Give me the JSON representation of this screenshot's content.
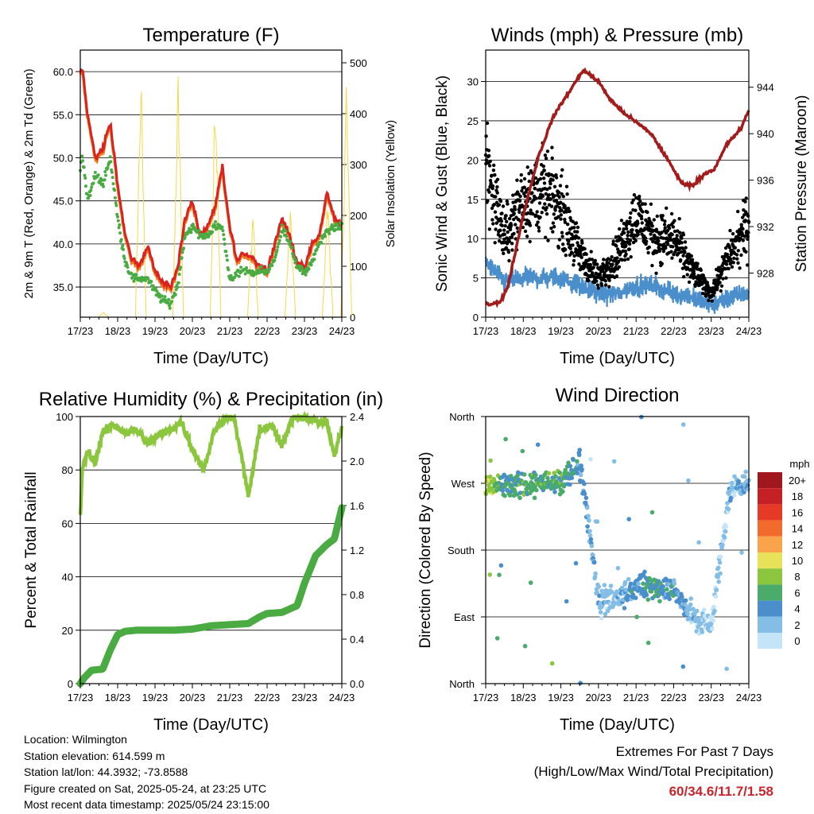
{
  "colors": {
    "temp_2m": "#d8231f",
    "temp_9m": "#f47a1f",
    "dewpoint": "#4aab43",
    "insolation": "#f7d84a",
    "wind": "#4a8fcc",
    "gust": "#000000",
    "pressure": "#a31c1c",
    "rh": "#8cc63f",
    "rain": "#4aab43",
    "extremes": "#c8252c"
  },
  "common_x": {
    "ticks": [
      "17/23",
      "18/23",
      "19/23",
      "20/23",
      "21/23",
      "22/23",
      "23/23",
      "24/23"
    ],
    "label": "Time (Day/UTC)"
  },
  "chart_data": [
    {
      "id": "temperature",
      "type": "line",
      "title": "Temperature (F)",
      "xlabel": "Time (Day/UTC)",
      "ylabel": "2m & 9m T (Red, Orange) & 2m Td (Green)",
      "y2label": "Solar Insolation (Yellow)",
      "ylim": [
        31.5,
        62.5
      ],
      "y2lim": [
        0,
        525
      ],
      "yticks": [
        "35.0",
        "40.0",
        "45.0",
        "50.0",
        "55.0",
        "60.0"
      ],
      "y2ticks": [
        "0",
        "100",
        "200",
        "300",
        "400",
        "500"
      ],
      "series": [
        {
          "name": "2m T",
          "x": [
            0,
            0.05,
            0.2,
            0.4,
            0.6,
            0.8,
            1.0,
            1.2,
            1.4,
            1.6,
            1.8,
            2.0,
            2.2,
            2.4,
            2.6,
            2.8,
            3.0,
            3.2,
            3.4,
            3.6,
            3.8,
            4.0,
            4.2,
            4.4,
            4.6,
            4.8,
            5.0,
            5.2,
            5.4,
            5.6,
            5.8,
            6.0,
            6.2,
            6.4,
            6.6,
            6.8,
            7.0
          ],
          "values": [
            60,
            60.5,
            55,
            50,
            51,
            54,
            47,
            41,
            38,
            37.5,
            40,
            37,
            35.5,
            35,
            37,
            43,
            45,
            41,
            42,
            44,
            49,
            42,
            38,
            39,
            38.5,
            37.5,
            37,
            40,
            43,
            41,
            38,
            37,
            40,
            41,
            46,
            43,
            42
          ]
        },
        {
          "name": "2m Td",
          "x": [
            0,
            0.05,
            0.2,
            0.4,
            0.6,
            0.8,
            1.0,
            1.2,
            1.4,
            1.6,
            1.8,
            2.0,
            2.2,
            2.4,
            2.6,
            2.8,
            3.0,
            3.2,
            3.4,
            3.6,
            3.8,
            4.0,
            4.2,
            4.4,
            4.6,
            4.8,
            5.0,
            5.2,
            5.4,
            5.6,
            5.8,
            6.0,
            6.2,
            6.4,
            6.6,
            6.8,
            7.0
          ],
          "values": [
            49,
            50.5,
            45,
            48,
            47,
            50,
            43,
            38,
            36,
            36,
            36,
            34.5,
            33.5,
            33,
            35,
            41,
            42,
            41,
            41,
            42,
            42,
            36,
            36.5,
            37,
            36.5,
            37,
            36.8,
            38,
            42,
            40,
            37.5,
            36.5,
            38,
            40,
            41.5,
            42,
            42
          ]
        },
        {
          "name": "Solar Insolation",
          "peaks_day": [
            0,
            1,
            2,
            3,
            4,
            5,
            6,
            6.5
          ],
          "peaks": [
            10,
            520,
            500,
            510,
            230,
            220,
            250,
            500
          ]
        }
      ]
    },
    {
      "id": "winds",
      "type": "scatter",
      "title": "Winds (mph) & Pressure (mb)",
      "xlabel": "Time (Day/UTC)",
      "ylabel": "Sonic Wind & Gust (Blue, Black)",
      "y2label": "Station Pressure (Maroon)",
      "ylim": [
        0,
        34
      ],
      "y2lim": [
        924.2,
        947.2
      ],
      "yticks": [
        "0",
        "5",
        "10",
        "15",
        "20",
        "25",
        "30"
      ],
      "y2ticks": [
        "928",
        "932",
        "936",
        "940",
        "944"
      ],
      "series": [
        {
          "name": "Station Pressure",
          "x": [
            0,
            0.1,
            0.4,
            0.6,
            1.0,
            1.4,
            1.8,
            2.2,
            2.6,
            3.0,
            3.3,
            3.6,
            4.0,
            4.4,
            4.8,
            5.2,
            5.5,
            5.8,
            6.1,
            6.4,
            6.8,
            7.0
          ],
          "values": [
            925.5,
            925.3,
            925.5,
            927,
            933,
            938,
            941.5,
            943.5,
            945.5,
            944.5,
            943,
            942,
            941,
            940,
            938,
            935.8,
            935.5,
            936.5,
            937,
            939,
            940.5,
            942
          ]
        },
        {
          "name": "Gust (daily center)",
          "x": [
            0,
            0.5,
            1.0,
            1.5,
            2.0,
            2.5,
            3.0,
            3.5,
            4.0,
            4.5,
            5.0,
            5.5,
            6.0,
            6.5,
            7.0
          ],
          "values": [
            20,
            10,
            15,
            16,
            14,
            8,
            5,
            8,
            13,
            10,
            10,
            6,
            3,
            8,
            12
          ]
        },
        {
          "name": "Sonic Wind (daily center)",
          "x": [
            0,
            0.5,
            1.0,
            1.5,
            2.0,
            2.5,
            3.0,
            3.5,
            4.0,
            4.5,
            5.0,
            5.5,
            6.0,
            6.5,
            7.0
          ],
          "values": [
            7,
            4.5,
            5,
            5,
            5,
            4,
            3,
            3,
            4,
            4,
            3,
            2.5,
            1.5,
            2.5,
            3
          ]
        }
      ]
    },
    {
      "id": "humidity",
      "type": "line",
      "title": "Relative Humidity (%) & Precipitation (in)",
      "xlabel": "Time (Day/UTC)",
      "ylabel": "Percent & Total Rainfall",
      "ylim": [
        0,
        100
      ],
      "y2lim": [
        0,
        2.4
      ],
      "yticks": [
        "0",
        "20",
        "40",
        "60",
        "80",
        "100"
      ],
      "y2ticks": [
        "0.0",
        "0.4",
        "0.8",
        "1.2",
        "1.6",
        "2.0",
        "2.4"
      ],
      "series": [
        {
          "name": "Relative Humidity",
          "x": [
            0,
            0.05,
            0.2,
            0.4,
            0.6,
            0.9,
            1.2,
            1.5,
            1.8,
            2.1,
            2.4,
            2.7,
            3.0,
            3.3,
            3.6,
            3.9,
            4.1,
            4.3,
            4.5,
            4.8,
            5.1,
            5.4,
            5.7,
            6.0,
            6.3,
            6.6,
            6.8,
            7.0
          ],
          "values": [
            63,
            80,
            87,
            83,
            94,
            97,
            94,
            95,
            90,
            93,
            95,
            98,
            88,
            80,
            95,
            100,
            100,
            86,
            70,
            95,
            97,
            89,
            100,
            100,
            98,
            98,
            85,
            96
          ]
        },
        {
          "name": "Total Rainfall",
          "x": [
            0,
            0.1,
            0.3,
            0.6,
            0.8,
            1.0,
            1.2,
            1.5,
            2.0,
            2.5,
            3.0,
            3.5,
            4.0,
            4.5,
            4.8,
            5.0,
            5.4,
            5.8,
            6.0,
            6.3,
            6.6,
            6.8,
            7.0
          ],
          "values": [
            0,
            0.05,
            0.12,
            0.13,
            0.3,
            0.44,
            0.47,
            0.48,
            0.48,
            0.48,
            0.49,
            0.52,
            0.53,
            0.54,
            0.6,
            0.63,
            0.64,
            0.7,
            0.9,
            1.15,
            1.25,
            1.3,
            1.58
          ]
        }
      ]
    },
    {
      "id": "direction",
      "type": "scatter",
      "title": "Wind Direction",
      "xlabel": "Time (Day/UTC)",
      "ylabel": "Direction (Colored By Speed)",
      "yticks": [
        "North",
        "East",
        "South",
        "West",
        "North"
      ],
      "ylim": [
        0,
        360
      ],
      "series": [
        {
          "name": "Direction (daily center, deg)",
          "x": [
            0,
            0.5,
            1.0,
            1.5,
            2.0,
            2.5,
            3.0,
            3.5,
            4.0,
            4.5,
            5.0,
            5.5,
            6.0,
            6.5,
            7.0
          ],
          "values": [
            270,
            270,
            270,
            270,
            270,
            300,
            110,
            115,
            130,
            130,
            130,
            90,
            80,
            260,
            270
          ]
        },
        {
          "name": "Speed (daily center, mph)",
          "x": [
            0,
            0.5,
            1.0,
            1.5,
            2.0,
            2.5,
            3.0,
            3.5,
            4.0,
            4.5,
            5.0,
            5.5,
            6.0,
            6.5,
            7.0
          ],
          "values": [
            9,
            5,
            6,
            6,
            6,
            4,
            2,
            2,
            4,
            5,
            4,
            2,
            1,
            2,
            3
          ]
        }
      ],
      "legend": {
        "title": "mph",
        "labels": [
          "20+",
          "18",
          "16",
          "14",
          "12",
          "10",
          "8",
          "6",
          "4",
          "2",
          "0"
        ],
        "colors": [
          "#a0181d",
          "#c62027",
          "#e63a27",
          "#f26b2c",
          "#f9a44a",
          "#e7e25a",
          "#8cc63f",
          "#4aab6a",
          "#4a8fcc",
          "#84bde6",
          "#c4e4f7"
        ]
      }
    }
  ],
  "info": {
    "location": "Location: Wilmington",
    "elevation": "Station elevation: 614.599 m",
    "latlon": "Station lat/lon: 44.3932; -73.8588",
    "created": "Figure created on Sat, 2025-05-24, at 23:25 UTC",
    "recent": "Most recent data timestamp: 2025/05/24 23:15:00"
  },
  "extremes": {
    "title1": "Extremes For Past 7 Days",
    "title2": "(High/Low/Max Wind/Total Precipitation)",
    "values": "60/34.6/11.7/1.58"
  }
}
